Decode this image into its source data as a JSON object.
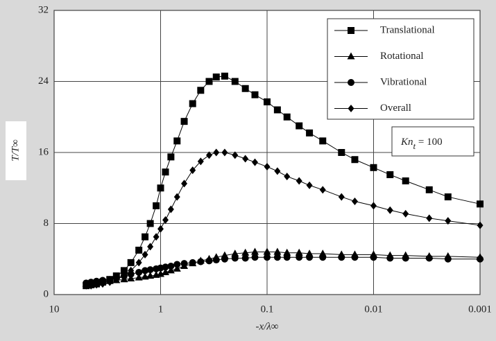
{
  "chart_data": {
    "type": "line",
    "xlabel": "-x/λ∞",
    "ylabel": "T/T∞",
    "annotation": {
      "main": "Kn",
      "sub": "t",
      "tail": " = 100"
    },
    "xscale": "log",
    "xlim": [
      10,
      0.001
    ],
    "xticks": [
      10,
      1,
      0.1,
      0.01,
      0.001
    ],
    "ylim": [
      0,
      32
    ],
    "yticks": [
      0,
      8,
      16,
      24,
      32
    ],
    "grid": true,
    "legend": "upper right",
    "x": [
      5,
      4.5,
      4,
      3.5,
      3,
      2.6,
      2.2,
      1.9,
      1.6,
      1.4,
      1.25,
      1.1,
      1.0,
      0.9,
      0.8,
      0.7,
      0.6,
      0.5,
      0.42,
      0.35,
      0.3,
      0.25,
      0.2,
      0.16,
      0.13,
      0.1,
      0.08,
      0.065,
      0.05,
      0.04,
      0.03,
      0.02,
      0.015,
      0.01,
      0.007,
      0.005,
      0.003,
      0.002,
      0.001
    ],
    "series": [
      {
        "name": "Translational",
        "color": "#000000",
        "marker": "square",
        "values": [
          1.0,
          1.1,
          1.2,
          1.4,
          1.7,
          2.1,
          2.7,
          3.6,
          5.0,
          6.5,
          8.0,
          10.0,
          12.0,
          13.8,
          15.5,
          17.3,
          19.5,
          21.5,
          23.0,
          24.0,
          24.5,
          24.6,
          24.0,
          23.2,
          22.5,
          21.7,
          20.8,
          20.0,
          19.0,
          18.2,
          17.3,
          16.0,
          15.2,
          14.3,
          13.5,
          12.8,
          11.8,
          11.0,
          10.2
        ]
      },
      {
        "name": "Rotational",
        "color": "#000000",
        "marker": "triangle",
        "values": [
          1.2,
          1.3,
          1.3,
          1.4,
          1.5,
          1.6,
          1.7,
          1.8,
          1.9,
          2.0,
          2.1,
          2.2,
          2.3,
          2.5,
          2.7,
          2.9,
          3.2,
          3.5,
          3.8,
          4.0,
          4.2,
          4.4,
          4.6,
          4.7,
          4.8,
          4.8,
          4.8,
          4.7,
          4.7,
          4.6,
          4.6,
          4.5,
          4.5,
          4.5,
          4.4,
          4.4,
          4.3,
          4.3,
          4.2
        ]
      },
      {
        "name": "Vibrational",
        "color": "#000000",
        "marker": "circle",
        "values": [
          1.3,
          1.4,
          1.5,
          1.6,
          1.7,
          1.9,
          2.1,
          2.3,
          2.5,
          2.7,
          2.8,
          2.9,
          3.0,
          3.1,
          3.2,
          3.4,
          3.5,
          3.6,
          3.7,
          3.8,
          3.9,
          4.0,
          4.1,
          4.1,
          4.2,
          4.2,
          4.2,
          4.2,
          4.2,
          4.2,
          4.2,
          4.2,
          4.2,
          4.2,
          4.1,
          4.1,
          4.1,
          4.0,
          4.0
        ]
      },
      {
        "name": "Overall",
        "color": "#000000",
        "marker": "diamond",
        "values": [
          1.0,
          1.0,
          1.1,
          1.2,
          1.4,
          1.7,
          2.1,
          2.7,
          3.6,
          4.5,
          5.4,
          6.5,
          7.4,
          8.4,
          9.6,
          11.0,
          12.5,
          14.0,
          15.0,
          15.7,
          16.0,
          16.0,
          15.7,
          15.3,
          14.9,
          14.4,
          13.9,
          13.3,
          12.8,
          12.3,
          11.8,
          11.0,
          10.5,
          10.0,
          9.5,
          9.1,
          8.6,
          8.3,
          7.8
        ]
      }
    ]
  }
}
